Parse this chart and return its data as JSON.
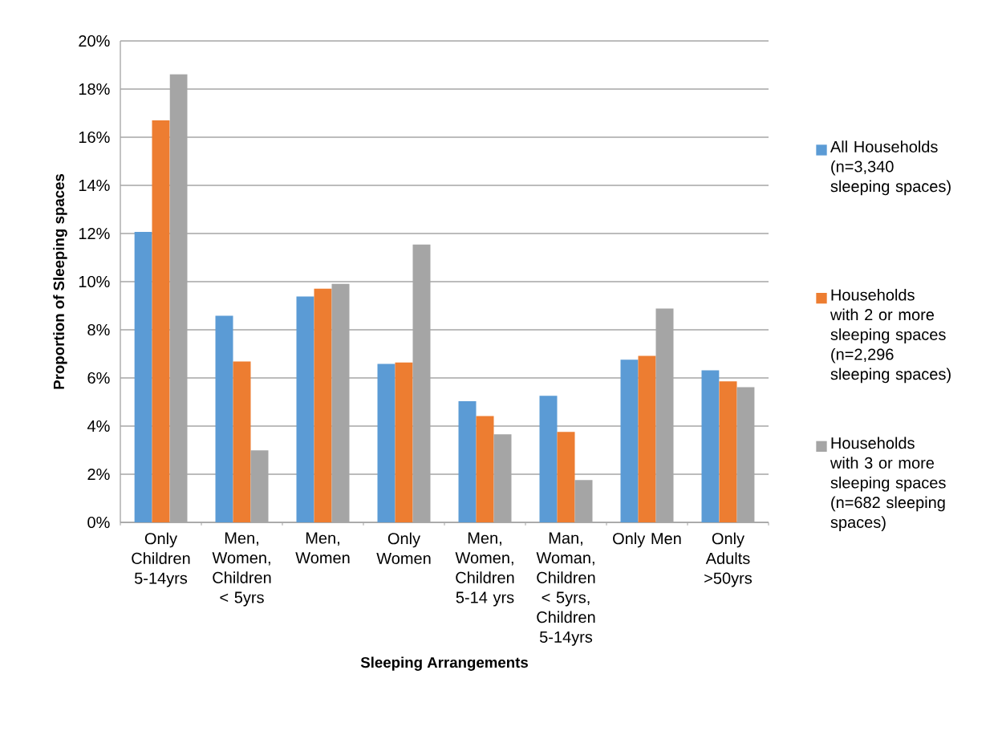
{
  "chart_data": {
    "type": "bar",
    "xlabel": "Sleeping Arrangements",
    "ylabel": "Proportion of Sleeping spaces",
    "categories": [
      "Only Children 5-14yrs",
      "Men, Women, Children < 5yrs",
      "Men, Women",
      "Only Women",
      "Men, Women, Children 5-14 yrs",
      "Man, Woman, Children < 5yrs, Children 5-14yrs",
      "Only Men",
      "Only Adults >50yrs"
    ],
    "series": [
      {
        "name": "All Households (n=3,340 sleeping spaces)",
        "color": "#5b9bd5",
        "values": [
          12.07,
          8.58,
          9.38,
          6.58,
          5.03,
          5.26,
          6.76,
          6.32
        ]
      },
      {
        "name": "Households with 2 or more sleeping spaces (n=2,296 sleeping spaces)",
        "color": "#ed7d31",
        "values": [
          16.7,
          6.68,
          9.71,
          6.64,
          4.42,
          3.76,
          6.92,
          5.86
        ]
      },
      {
        "name": "Households with 3 or more sleeping spaces (n=682 sleeping spaces)",
        "color": "#a5a5a5",
        "values": [
          18.62,
          2.99,
          9.91,
          11.54,
          3.66,
          1.76,
          8.88,
          5.62
        ]
      }
    ],
    "ylim": [
      0,
      20
    ],
    "yticks": [
      {
        "value": 0,
        "label": "0%"
      },
      {
        "value": 2,
        "label": "2%"
      },
      {
        "value": 4,
        "label": "4%"
      },
      {
        "value": 6,
        "label": "6%"
      },
      {
        "value": 8,
        "label": "8%"
      },
      {
        "value": 10,
        "label": "10%"
      },
      {
        "value": 12,
        "label": "12%"
      },
      {
        "value": 14,
        "label": "14%"
      },
      {
        "value": 16,
        "label": "16%"
      },
      {
        "value": 18,
        "label": "18%"
      },
      {
        "value": 20,
        "label": "20%"
      }
    ],
    "grid": "y",
    "legend": "right"
  }
}
